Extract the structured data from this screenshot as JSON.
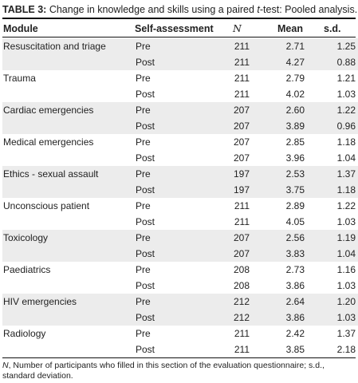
{
  "title": {
    "label": "TABLE 3:",
    "text_a": "Change in knowledge and skills using a paired ",
    "text_italic": "t",
    "text_b": "-test: Pooled analysis."
  },
  "headers": [
    "Module",
    "Self-assessment",
    "N",
    "Mean",
    "s.d."
  ],
  "rows": [
    {
      "module": "Resuscitation and triage",
      "assessment": "Pre",
      "n": "211",
      "mean": "2.71",
      "sd": "1.25"
    },
    {
      "module": "",
      "assessment": "Post",
      "n": "211",
      "mean": "4.27",
      "sd": "0.88"
    },
    {
      "module": "Trauma",
      "assessment": "Pre",
      "n": "211",
      "mean": "2.79",
      "sd": "1.21"
    },
    {
      "module": "",
      "assessment": "Post",
      "n": "211",
      "mean": "4.02",
      "sd": "1.03"
    },
    {
      "module": "Cardiac emergencies",
      "assessment": "Pre",
      "n": "207",
      "mean": "2.60",
      "sd": "1.22"
    },
    {
      "module": "",
      "assessment": "Post",
      "n": "207",
      "mean": "3.89",
      "sd": "0.96"
    },
    {
      "module": "Medical emergencies",
      "assessment": "Pre",
      "n": "207",
      "mean": "2.85",
      "sd": "1.18"
    },
    {
      "module": "",
      "assessment": "Post",
      "n": "207",
      "mean": "3.96",
      "sd": "1.04"
    },
    {
      "module": "Ethics - sexual assault",
      "assessment": "Pre",
      "n": "197",
      "mean": "2.53",
      "sd": "1.37"
    },
    {
      "module": "",
      "assessment": "Post",
      "n": "197",
      "mean": "3.75",
      "sd": "1.18"
    },
    {
      "module": "Unconscious patient",
      "assessment": "Pre",
      "n": "211",
      "mean": "2.89",
      "sd": "1.22"
    },
    {
      "module": "",
      "assessment": "Post",
      "n": "211",
      "mean": "4.05",
      "sd": "1.03"
    },
    {
      "module": "Toxicology",
      "assessment": "Pre",
      "n": "207",
      "mean": "2.56",
      "sd": "1.19"
    },
    {
      "module": "",
      "assessment": "Post",
      "n": "207",
      "mean": "3.83",
      "sd": "1.04"
    },
    {
      "module": "Paediatrics",
      "assessment": "Pre",
      "n": "208",
      "mean": "2.73",
      "sd": "1.16"
    },
    {
      "module": "",
      "assessment": "Post",
      "n": "208",
      "mean": "3.86",
      "sd": "1.03"
    },
    {
      "module": "HIV emergencies",
      "assessment": "Pre",
      "n": "212",
      "mean": "2.64",
      "sd": "1.20"
    },
    {
      "module": "",
      "assessment": "Post",
      "n": "212",
      "mean": "3.86",
      "sd": "1.03"
    },
    {
      "module": "Radiology",
      "assessment": "Pre",
      "n": "211",
      "mean": "2.42",
      "sd": "1.37"
    },
    {
      "module": "",
      "assessment": "Post",
      "n": "211",
      "mean": "3.85",
      "sd": "2.18"
    }
  ],
  "footnote": {
    "n_symbol": "N",
    "text": ", Number of participants who filled in this section of the evaluation questionnaire; s.d., standard deviation."
  },
  "colors": {
    "row_shade": "#ececec",
    "rule": "#111111",
    "text": "#222222"
  }
}
